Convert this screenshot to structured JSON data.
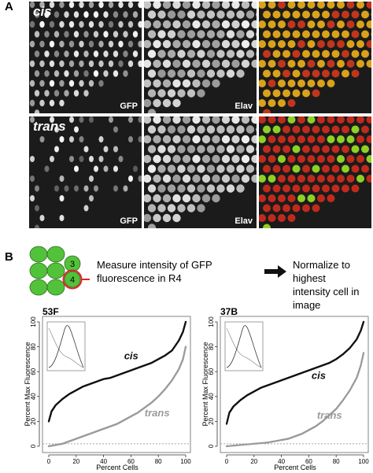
{
  "panel_a": {
    "letter": "A",
    "rows": [
      {
        "label": "cis",
        "images": [
          {
            "label": "GFP"
          },
          {
            "label": "Elav"
          },
          {
            "label": ""
          }
        ]
      },
      {
        "label": "trans",
        "images": [
          {
            "label": "GFP"
          },
          {
            "label": "Elav"
          },
          {
            "label": ""
          }
        ]
      }
    ]
  },
  "panel_b": {
    "letter": "B",
    "schematic": {
      "highlighted_cells": [
        "3",
        "4"
      ]
    },
    "step1_line1": "Measure intensity of GFP",
    "step1_line2": "fluorescence in R4",
    "step2_line1": "Normalize to highest",
    "step2_line2": "intensity cell in image"
  },
  "colors": {
    "cis": "#111111",
    "trans": "#9a9a9a",
    "highlight": "#e0262b",
    "cell_green": "#52c23a"
  },
  "chart_data": [
    {
      "type": "scatter",
      "title": "53F",
      "xlabel": "Percent Cells",
      "ylabel": "Percent Max Fluorescence",
      "xlim": [
        0,
        100
      ],
      "ylim": [
        0,
        100
      ],
      "xticks": [
        0,
        20,
        40,
        60,
        80,
        100
      ],
      "yticks": [
        0,
        20,
        40,
        60,
        80,
        100
      ],
      "series": [
        {
          "name": "cis",
          "x": [
            0,
            2,
            5,
            10,
            15,
            20,
            25,
            30,
            35,
            40,
            45,
            50,
            55,
            60,
            65,
            70,
            75,
            80,
            85,
            90,
            95,
            98,
            100
          ],
          "y": [
            20,
            28,
            33,
            38,
            42,
            45,
            48,
            50,
            52,
            54,
            55,
            57,
            59,
            61,
            63,
            65,
            67,
            70,
            73,
            77,
            85,
            92,
            100
          ]
        },
        {
          "name": "trans",
          "x": [
            0,
            5,
            10,
            15,
            20,
            25,
            30,
            35,
            40,
            45,
            50,
            55,
            60,
            65,
            70,
            75,
            80,
            85,
            90,
            95,
            98,
            100
          ],
          "y": [
            0,
            1,
            2,
            4,
            6,
            8,
            10,
            12,
            14,
            16,
            18,
            21,
            24,
            27,
            31,
            35,
            40,
            46,
            53,
            62,
            70,
            80
          ]
        }
      ],
      "baseline": 2
    },
    {
      "type": "scatter",
      "title": "37B",
      "xlabel": "Percent Cells",
      "ylabel": "Percent Max Fluorescence",
      "xlim": [
        0,
        100
      ],
      "ylim": [
        0,
        100
      ],
      "xticks": [
        0,
        20,
        40,
        60,
        80,
        100
      ],
      "yticks": [
        0,
        20,
        40,
        60,
        80,
        100
      ],
      "series": [
        {
          "name": "cis",
          "x": [
            0,
            2,
            5,
            10,
            15,
            20,
            25,
            30,
            35,
            40,
            45,
            50,
            55,
            60,
            65,
            70,
            75,
            80,
            85,
            90,
            95,
            98,
            100
          ],
          "y": [
            18,
            27,
            32,
            37,
            41,
            44,
            47,
            49,
            51,
            53,
            55,
            57,
            59,
            61,
            63,
            65,
            67,
            70,
            74,
            79,
            86,
            93,
            100
          ]
        },
        {
          "name": "trans",
          "x": [
            0,
            10,
            20,
            30,
            40,
            45,
            50,
            55,
            60,
            65,
            70,
            75,
            80,
            85,
            90,
            95,
            98,
            100
          ],
          "y": [
            0,
            1,
            2,
            3,
            5,
            6,
            8,
            10,
            13,
            16,
            20,
            25,
            30,
            37,
            45,
            55,
            65,
            75
          ]
        }
      ],
      "baseline": 2
    }
  ]
}
